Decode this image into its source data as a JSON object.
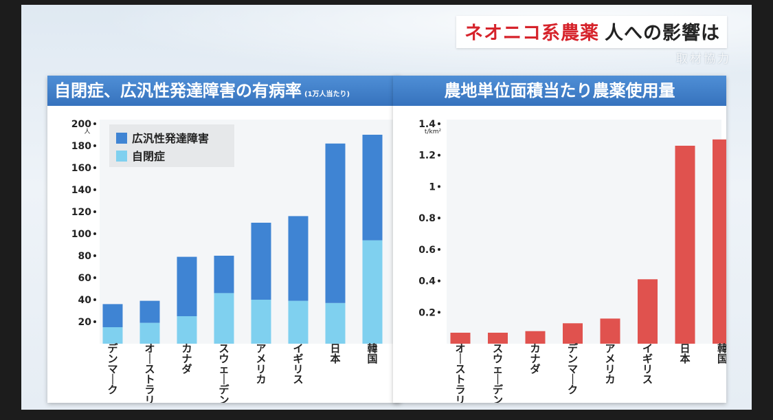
{
  "headline": {
    "part1": "ネオニコ系農薬",
    "part2": "人への影響は"
  },
  "watermark": "取材協力",
  "chart_data": [
    {
      "type": "bar",
      "stacked": true,
      "title": "自閉症、広汎性発達障害の有病率",
      "subtitle": "(1万人当たり)",
      "y_unit": "人",
      "ylim": [
        0,
        200
      ],
      "yticks": [
        20,
        40,
        60,
        80,
        100,
        120,
        140,
        160,
        180,
        200
      ],
      "categories": [
        "デンマーク",
        "オーストラリア",
        "カナダ",
        "スウェーデン",
        "アメリカ",
        "イギリス",
        "日本",
        "韓国"
      ],
      "series": [
        {
          "name": "自閉症",
          "color": "#7fd0ef",
          "values": [
            15,
            19,
            25,
            46,
            40,
            39,
            37,
            94
          ]
        },
        {
          "name": "広汎性発達障害",
          "color": "#3f84d3",
          "values": [
            21,
            20,
            54,
            34,
            70,
            77,
            145,
            96
          ]
        }
      ],
      "legend": "top-left"
    },
    {
      "type": "bar",
      "title": "農地単位面積当たり農薬使用量",
      "y_unit": "t/km²",
      "ylim": [
        0,
        1.4
      ],
      "yticks": [
        0.2,
        0.4,
        0.6,
        0.8,
        1,
        1.2,
        1.4
      ],
      "categories": [
        "オーストラリア",
        "スウェーデン",
        "カナダ",
        "デンマーク",
        "アメリカ",
        "イギリス",
        "日本",
        "韓国"
      ],
      "series": [
        {
          "color": "#e0524e",
          "values": [
            0.07,
            0.07,
            0.08,
            0.13,
            0.16,
            0.41,
            1.26,
            1.3
          ]
        }
      ]
    }
  ]
}
